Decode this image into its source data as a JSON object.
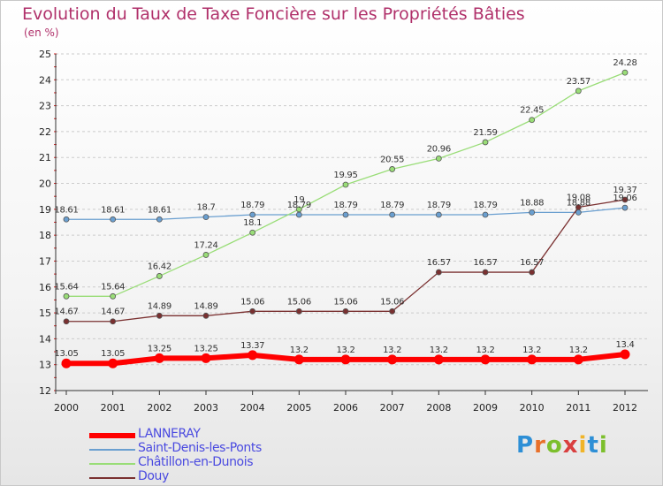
{
  "header": {
    "title": "Evolution du Taux de Taxe Foncière sur les Propriétés Bâties",
    "unit": "(en %)"
  },
  "logo": {
    "text": "Proxiti",
    "letter_colors": [
      "#2d8fd6",
      "#e8702a",
      "#7cbf2c",
      "#d93f3f",
      "#f0b428",
      "#2d8fd6",
      "#7cbf2c"
    ]
  },
  "colors": {
    "LANNERAY": "#ff0000",
    "Saint-Denis-les-Ponts": "#6a9fd0",
    "Châtillon-en-Dunois": "#99dd77",
    "Douy": "#7a3030",
    "grid": "#cccccc",
    "axis": "#333333"
  },
  "chart_data": {
    "type": "line",
    "x": [
      2000,
      2001,
      2002,
      2003,
      2004,
      2005,
      2006,
      2007,
      2008,
      2009,
      2010,
      2011,
      2012
    ],
    "xlabel": "",
    "ylabel": "(en %)",
    "ylim": [
      12,
      25
    ],
    "yticks": [
      12,
      13,
      14,
      15,
      16,
      17,
      18,
      19,
      20,
      21,
      22,
      23,
      24,
      25
    ],
    "grid": "horizontal dashed",
    "legend_position": "bottom-left",
    "series": [
      {
        "name": "LANNERAY",
        "values": [
          13.05,
          13.05,
          13.25,
          13.25,
          13.37,
          13.2,
          13.2,
          13.2,
          13.2,
          13.2,
          13.2,
          13.2,
          13.4
        ],
        "labels": [
          "13.05",
          "13.05",
          "13.25",
          "13.25",
          "13.37",
          "13.2",
          "13.2",
          "13.2",
          "13.2",
          "13.2",
          "13.2",
          "13.2",
          "13.4"
        ]
      },
      {
        "name": "Saint-Denis-les-Ponts",
        "values": [
          18.61,
          18.61,
          18.61,
          18.7,
          18.79,
          18.79,
          18.79,
          18.79,
          18.79,
          18.79,
          18.88,
          18.88,
          19.06
        ],
        "labels": [
          "18.61",
          "18.61",
          "18.61",
          "18.7",
          "18.79",
          "18.79",
          "18.79",
          "18.79",
          "18.79",
          "18.79",
          "18.88",
          "18.88",
          "19.06"
        ]
      },
      {
        "name": "Châtillon-en-Dunois",
        "values": [
          15.64,
          15.64,
          16.42,
          17.24,
          18.1,
          19.0,
          19.95,
          20.55,
          20.96,
          21.59,
          22.45,
          23.57,
          24.28
        ],
        "labels": [
          "15.64",
          "15.64",
          "16.42",
          "17.24",
          "18.1",
          "19",
          "19.95",
          "20.55",
          "20.96",
          "21.59",
          "22.45",
          "23.57",
          "24.28"
        ]
      },
      {
        "name": "Douy",
        "values": [
          14.67,
          14.67,
          14.89,
          14.89,
          15.06,
          15.06,
          15.06,
          15.06,
          16.57,
          16.57,
          16.57,
          19.08,
          19.37
        ],
        "labels": [
          "14.67",
          "14.67",
          "14.89",
          "14.89",
          "15.06",
          "15.06",
          "15.06",
          "15.06",
          "16.57",
          "16.57",
          "16.57",
          "19.08",
          "19.37"
        ]
      }
    ]
  }
}
